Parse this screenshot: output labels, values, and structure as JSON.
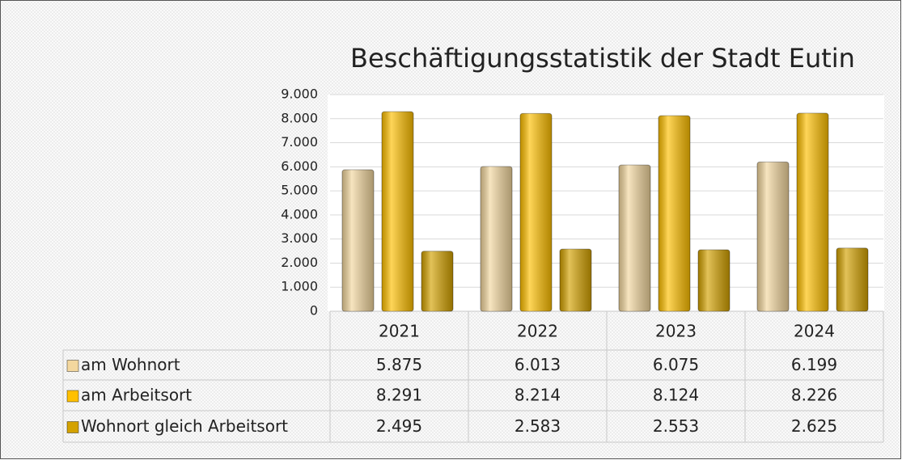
{
  "chart_data": {
    "type": "bar",
    "title": "Beschäftigungsstatistik der Stadt Eutin",
    "categories": [
      "2021",
      "2022",
      "2023",
      "2024"
    ],
    "series": [
      {
        "name": "am Wohnort",
        "color": "#f3d79e",
        "values": [
          5875,
          6013,
          6075,
          6199
        ],
        "value_labels": [
          "5.875",
          "6.013",
          "6.075",
          "6.199"
        ]
      },
      {
        "name": "am Arbeitsort",
        "color": "#ffc000",
        "values": [
          8291,
          8214,
          8124,
          8226
        ],
        "value_labels": [
          "8.291",
          "8.214",
          "8.124",
          "8.226"
        ]
      },
      {
        "name": "Wohnort gleich Arbeitsort",
        "color": "#d4a200",
        "values": [
          2495,
          2583,
          2553,
          2625
        ],
        "value_labels": [
          "2.495",
          "2.583",
          "2.553",
          "2.625"
        ]
      }
    ],
    "ylim": [
      0,
      9000
    ],
    "yticks": [
      0,
      {
        "value": 1000,
        "label": "1.000"
      },
      {
        "value": 2000,
        "label": "2.000"
      },
      {
        "value": 3000,
        "label": "3.000"
      },
      {
        "value": 4000,
        "label": "4.000"
      },
      {
        "value": 5000,
        "label": "5.000"
      },
      {
        "value": 6000,
        "label": "6.000"
      },
      {
        "value": 7000,
        "label": "7.000"
      },
      {
        "value": 8000,
        "label": "8.000"
      },
      {
        "value": 9000,
        "label": "9.000"
      }
    ],
    "grid": true
  }
}
